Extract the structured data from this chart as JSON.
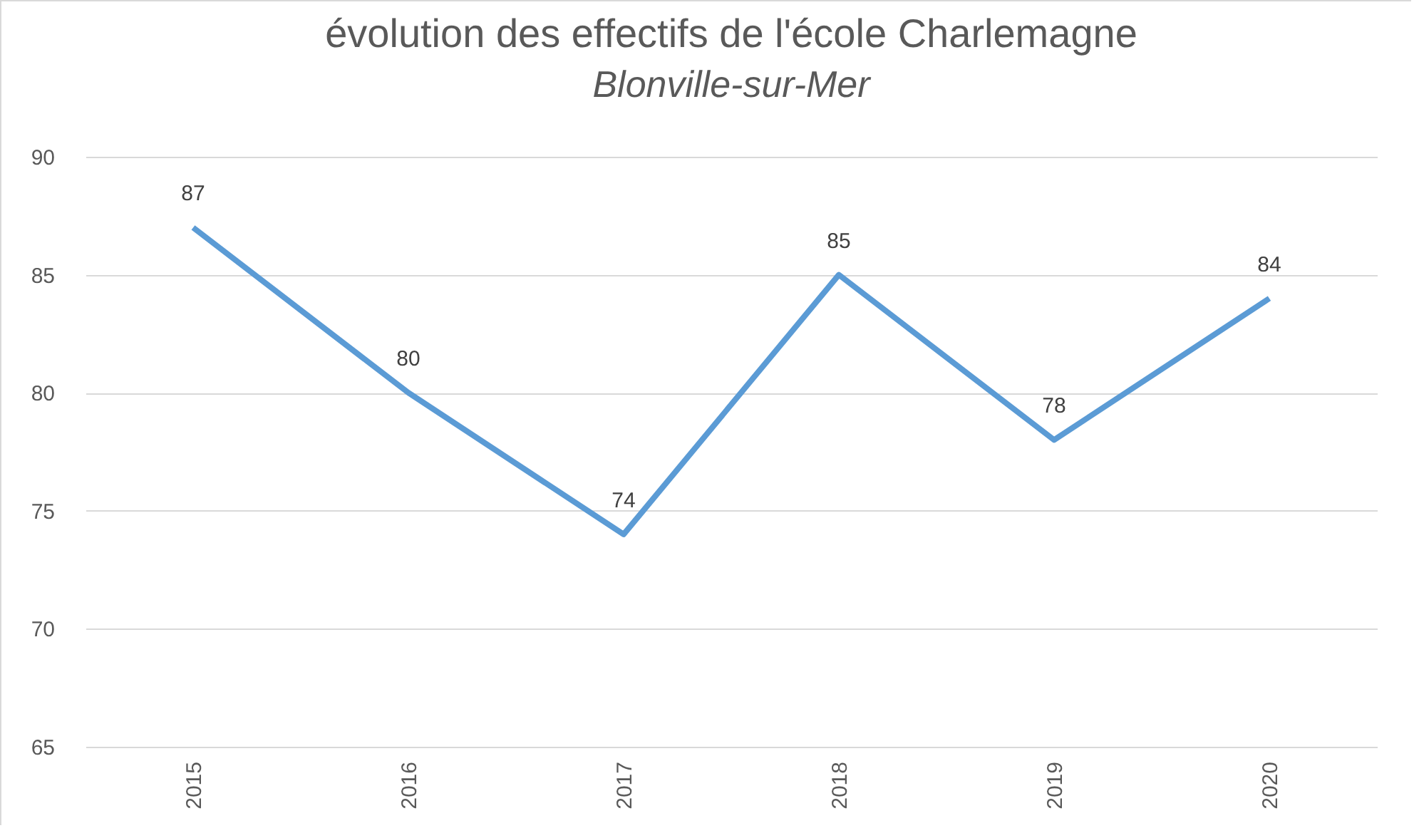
{
  "chart_data": {
    "type": "line",
    "title": "évolution des effectifs de l'école Charlemagne",
    "subtitle": "Blonville-sur-Mer",
    "categories": [
      "2015",
      "2016",
      "2017",
      "2018",
      "2019",
      "2020"
    ],
    "series": [
      {
        "color": "#5b9bd5",
        "values": [
          87,
          80,
          74,
          85,
          78,
          84
        ]
      }
    ],
    "ylim": [
      65,
      90
    ],
    "yticks": [
      65,
      70,
      75,
      80,
      85,
      90
    ],
    "grid": "y",
    "data_labels": true,
    "marker": "none",
    "line_style": "solid"
  }
}
